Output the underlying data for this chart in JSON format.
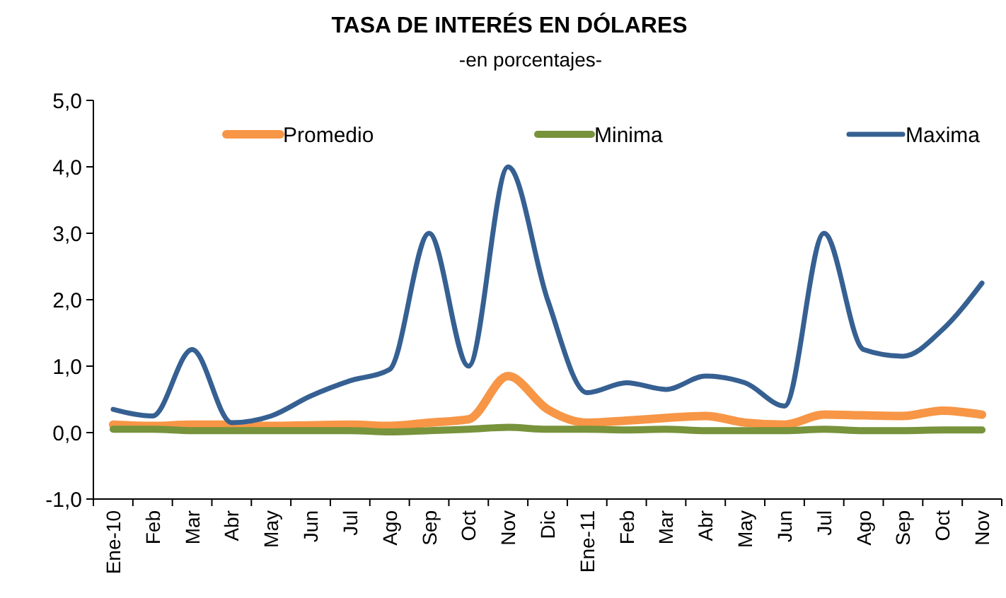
{
  "chart_data": {
    "type": "line",
    "title": "TASA DE INTERÉS  EN DÓLARES",
    "subtitle": "-en porcentajes-",
    "categories": [
      "Ene-10",
      "Feb",
      "Mar",
      "Abr",
      "May",
      "Jun",
      "Jul",
      "Ago",
      "Sep",
      "Oct",
      "Nov",
      "Dic",
      "Ene-11",
      "Feb",
      "Mar",
      "Abr",
      "May",
      "Jun",
      "Jul",
      "Ago",
      "Sep",
      "Oct",
      "Nov"
    ],
    "series": [
      {
        "name": "Promedio",
        "color": "#f79646",
        "values": [
          0.12,
          0.1,
          0.12,
          0.12,
          0.1,
          0.11,
          0.12,
          0.1,
          0.15,
          0.2,
          0.85,
          0.35,
          0.15,
          0.18,
          0.22,
          0.25,
          0.15,
          0.12,
          0.27,
          0.26,
          0.25,
          0.33,
          0.27
        ]
      },
      {
        "name": "Minima",
        "color": "#77933c",
        "values": [
          0.05,
          0.05,
          0.03,
          0.03,
          0.03,
          0.03,
          0.03,
          0.01,
          0.03,
          0.05,
          0.08,
          0.05,
          0.05,
          0.04,
          0.05,
          0.03,
          0.03,
          0.03,
          0.05,
          0.03,
          0.03,
          0.04,
          0.04
        ]
      },
      {
        "name": "Maxima",
        "color": "#366092",
        "values": [
          0.35,
          0.25,
          1.25,
          0.15,
          0.25,
          0.55,
          0.78,
          0.95,
          3.0,
          1.0,
          4.0,
          2.0,
          0.6,
          0.75,
          0.65,
          0.85,
          0.75,
          0.4,
          3.0,
          1.25,
          1.15,
          1.55,
          2.25
        ]
      }
    ],
    "ylim": [
      -1,
      5
    ],
    "yticks": [
      {
        "value": -1,
        "label": "-1,0"
      },
      {
        "value": 0,
        "label": "0,0"
      },
      {
        "value": 1,
        "label": "1,0"
      },
      {
        "value": 2,
        "label": "2,0"
      },
      {
        "value": 3,
        "label": "3,0"
      },
      {
        "value": 4,
        "label": "4,0"
      },
      {
        "value": 5,
        "label": "5,0"
      }
    ],
    "grid": false,
    "legend": "top",
    "marker": "none",
    "line_style": "solid"
  }
}
